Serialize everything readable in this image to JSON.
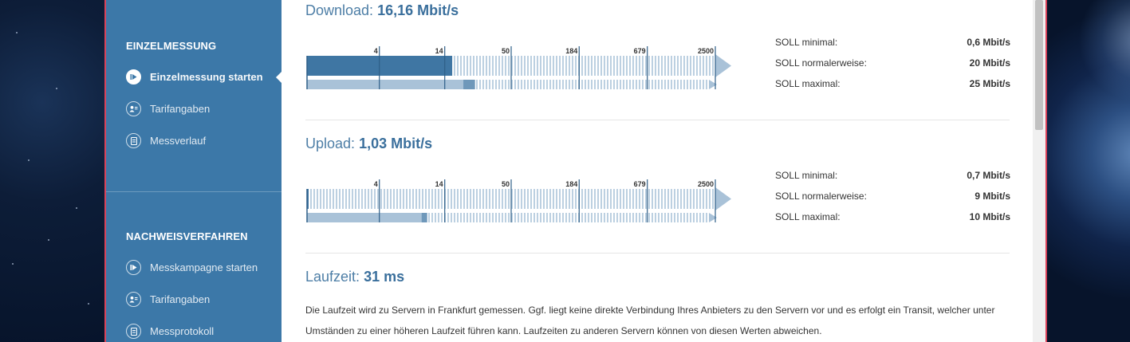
{
  "sidebar": {
    "section1": "EINZELMESSUNG",
    "items1": [
      {
        "label": "Einzelmessung starten",
        "icon": "play-icon",
        "active": true
      },
      {
        "label": "Tarifangaben",
        "icon": "user-tariff-icon",
        "active": false
      },
      {
        "label": "Messverlauf",
        "icon": "history-icon",
        "active": false
      }
    ],
    "section2": "NACHWEISVERFAHREN",
    "items2": [
      {
        "label": "Messkampagne starten",
        "icon": "play-icon",
        "active": false
      },
      {
        "label": "Tarifangaben",
        "icon": "user-tariff-icon",
        "active": false
      },
      {
        "label": "Messprotokoll",
        "icon": "protocol-icon",
        "active": false
      }
    ]
  },
  "scale_ticks": [
    "4",
    "14",
    "50",
    "184",
    "679",
    "2500"
  ],
  "download": {
    "title": "Download:",
    "value": "16,16 Mbit/s",
    "measured_mbits": 16.16,
    "target_normal_mbits": 20,
    "target_max_mbits": 25,
    "soll": [
      {
        "label": "SOLL minimal:",
        "value": "0,6 Mbit/s"
      },
      {
        "label": "SOLL normalerweise:",
        "value": "20 Mbit/s"
      },
      {
        "label": "SOLL maximal:",
        "value": "25 Mbit/s"
      }
    ]
  },
  "upload": {
    "title": "Upload:",
    "value": "1,03 Mbit/s",
    "measured_mbits": 1.03,
    "target_normal_mbits": 9,
    "target_max_mbits": 10,
    "soll": [
      {
        "label": "SOLL minimal:",
        "value": "0,7 Mbit/s"
      },
      {
        "label": "SOLL normalerweise:",
        "value": "9 Mbit/s"
      },
      {
        "label": "SOLL maximal:",
        "value": "10 Mbit/s"
      }
    ]
  },
  "latency": {
    "title": "Laufzeit:",
    "value": "31 ms",
    "description": "Die Laufzeit wird zu Servern in Frankfurt gemessen. Ggf. liegt keine direkte Verbindung Ihres Anbieters zu den Servern vor und es erfolgt ein Transit, welcher unter Umständen zu einer höheren Laufzeit führen kann. Laufzeiten zu anderen Servern können von diesen Werten abweichen."
  },
  "colors": {
    "sidebar": "#3c78a8",
    "accent": "#3a6f9c",
    "bar_dark": "#3f76a3",
    "bar_light": "#a9c2d8",
    "stripe": "#bcd0e1"
  }
}
